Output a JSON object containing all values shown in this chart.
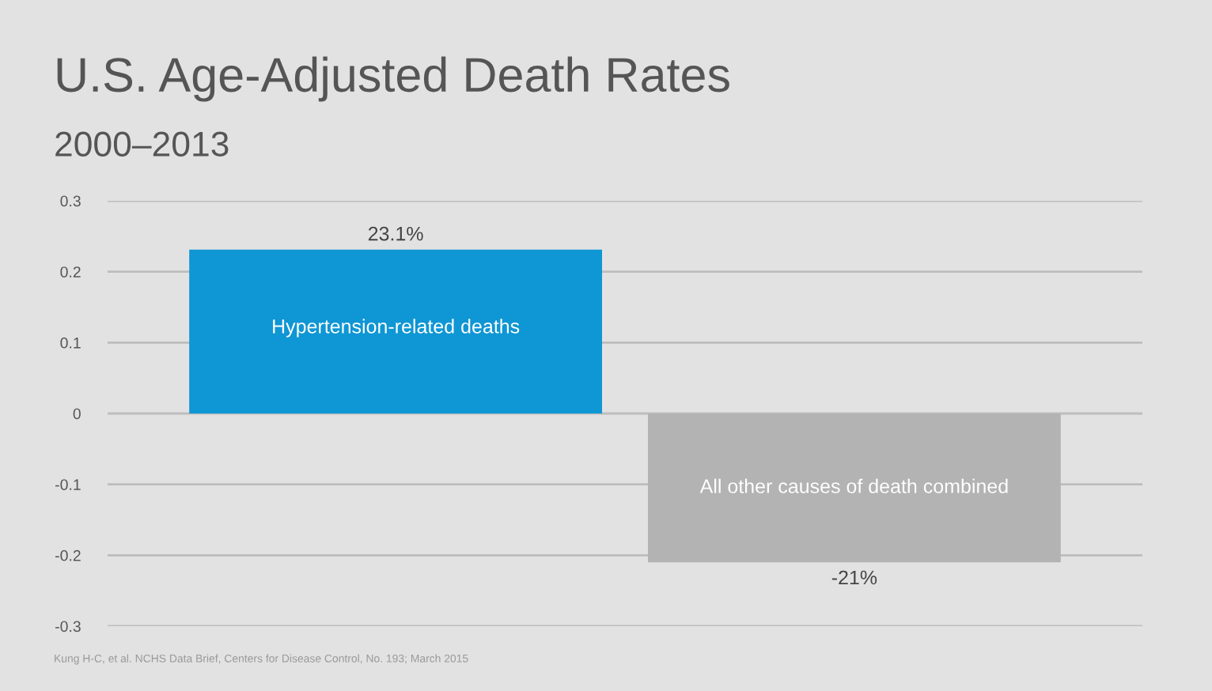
{
  "chart_data": {
    "type": "bar",
    "title": "U.S. Age-Adjusted Death Rates",
    "subtitle": "2000–2013",
    "categories": [
      "Hypertension-related deaths",
      "All other causes of death combined"
    ],
    "values": [
      0.231,
      -0.21
    ],
    "colors": [
      "#0f96d4",
      "#b3b3b3"
    ],
    "value_labels": [
      "23.1%",
      "-21%"
    ],
    "ylim": [
      -0.3,
      0.3
    ],
    "yticks": [
      {
        "value": -0.3,
        "label": "-0.3"
      },
      {
        "value": -0.2,
        "label": "-0.2"
      },
      {
        "value": -0.1,
        "label": "-0.1"
      },
      0,
      0.1,
      0.2,
      0.3
    ],
    "grid": "y",
    "annotations": [
      "Kung H-C, et al. NCHS Data Brief, Centers for Disease Control, No. 193; March 2015"
    ]
  }
}
